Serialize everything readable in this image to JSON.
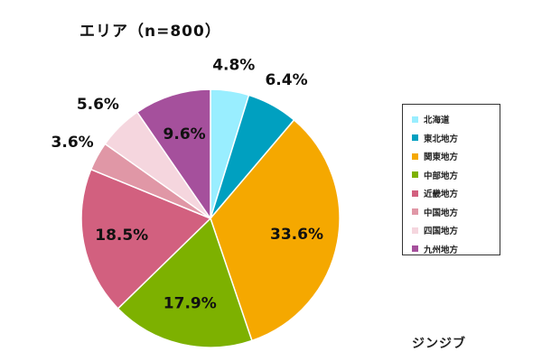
{
  "title": "エリア（n=800）",
  "brand": "ジンジブ",
  "chart_data": {
    "type": "pie",
    "title": "エリア（n=800）",
    "legend_position": "right",
    "slices": [
      {
        "name": "北海道",
        "value": 4.8,
        "label": "4.8%",
        "color": "#99EEFF"
      },
      {
        "name": "東北地方",
        "value": 6.4,
        "label": "6.4%",
        "color": "#00A0C0"
      },
      {
        "name": "関東地方",
        "value": 33.6,
        "label": "33.6%",
        "color": "#F5A800"
      },
      {
        "name": "中部地方",
        "value": 17.9,
        "label": "17.9%",
        "color": "#7DB100"
      },
      {
        "name": "近畿地方",
        "value": 18.5,
        "label": "18.5%",
        "color": "#D2607F"
      },
      {
        "name": "中国地方",
        "value": 3.6,
        "label": "3.6%",
        "color": "#E097A6"
      },
      {
        "name": "四国地方",
        "value": 5.6,
        "label": "5.6%",
        "color": "#F5D6DE"
      },
      {
        "name": "九州地方",
        "value": 9.6,
        "label": "9.6%",
        "color": "#A5509C"
      }
    ]
  }
}
